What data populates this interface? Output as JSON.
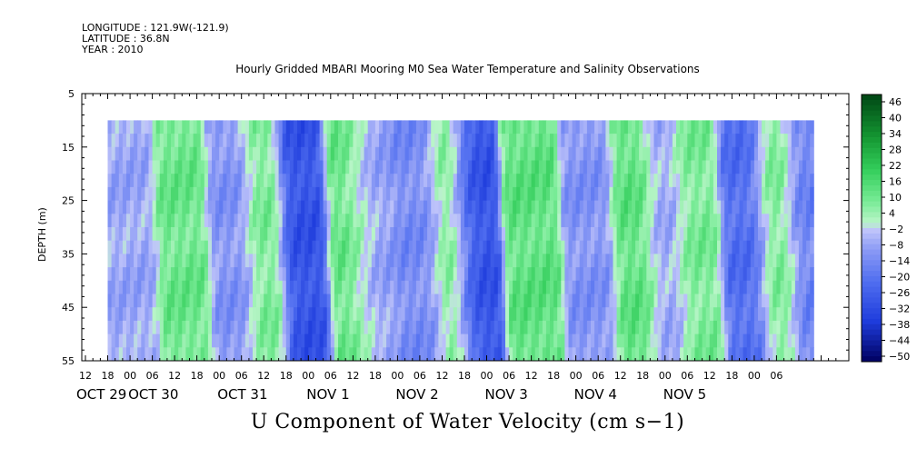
{
  "header": {
    "longitude": "LONGITUDE : 121.9W(-121.9)",
    "latitude": "LATITUDE : 36.8N",
    "year": "YEAR : 2010",
    "title": "Hourly Gridded MBARI Mooring M0 Sea Water Temperature and Salinity Observations"
  },
  "caption": "U Component of Water Velocity (cm s−1)",
  "chart_data": {
    "type": "heatmap",
    "title": "Hourly Gridded MBARI Mooring M0 Sea Water Temperature and Salinity Observations",
    "xlabel": "",
    "ylabel": "DEPTH (m)",
    "ylim": [
      5,
      55
    ],
    "y_inverted": true,
    "y_ticks": [
      "5",
      "15",
      "25",
      "35",
      "45",
      "55"
    ],
    "x_hour_ticks": [
      "12",
      "18",
      "00",
      "06",
      "12",
      "18",
      "00",
      "06",
      "12",
      "18",
      "00",
      "06",
      "12",
      "18",
      "00",
      "06",
      "12",
      "18",
      "00",
      "06",
      "12",
      "18",
      "00",
      "06",
      "12",
      "18",
      "00",
      "06",
      "12",
      "18",
      "00",
      "06"
    ],
    "x_day_labels": [
      "OCT 29",
      "OCT 30",
      "OCT 31",
      "NOV  1",
      "NOV  2",
      "NOV  3",
      "NOV  4",
      "NOV  5"
    ],
    "data_depth_range": [
      10,
      55
    ],
    "data_time_range_hours": [
      18,
      208
    ],
    "colorbar": {
      "label": "U Component of Water Velocity (cm s−1)",
      "ticks": [
        "46",
        "40",
        "34",
        "28",
        "22",
        "16",
        "10",
        "4",
        "−2",
        "−8",
        "−14",
        "−20",
        "−26",
        "−32",
        "−38",
        "−44",
        "−50"
      ],
      "range": [
        -50,
        50
      ]
    },
    "pattern_centers_hours": [
      24,
      38,
      52,
      60,
      70,
      84,
      88,
      103,
      110,
      116,
      132,
      148,
      160,
      168,
      176,
      190,
      198,
      206
    ],
    "pattern_values": [
      -6,
      12,
      -10,
      10,
      -28,
      14,
      -8,
      -12,
      12,
      -28,
      14,
      -10,
      14,
      -6,
      10,
      -20,
      10,
      -14
    ]
  }
}
